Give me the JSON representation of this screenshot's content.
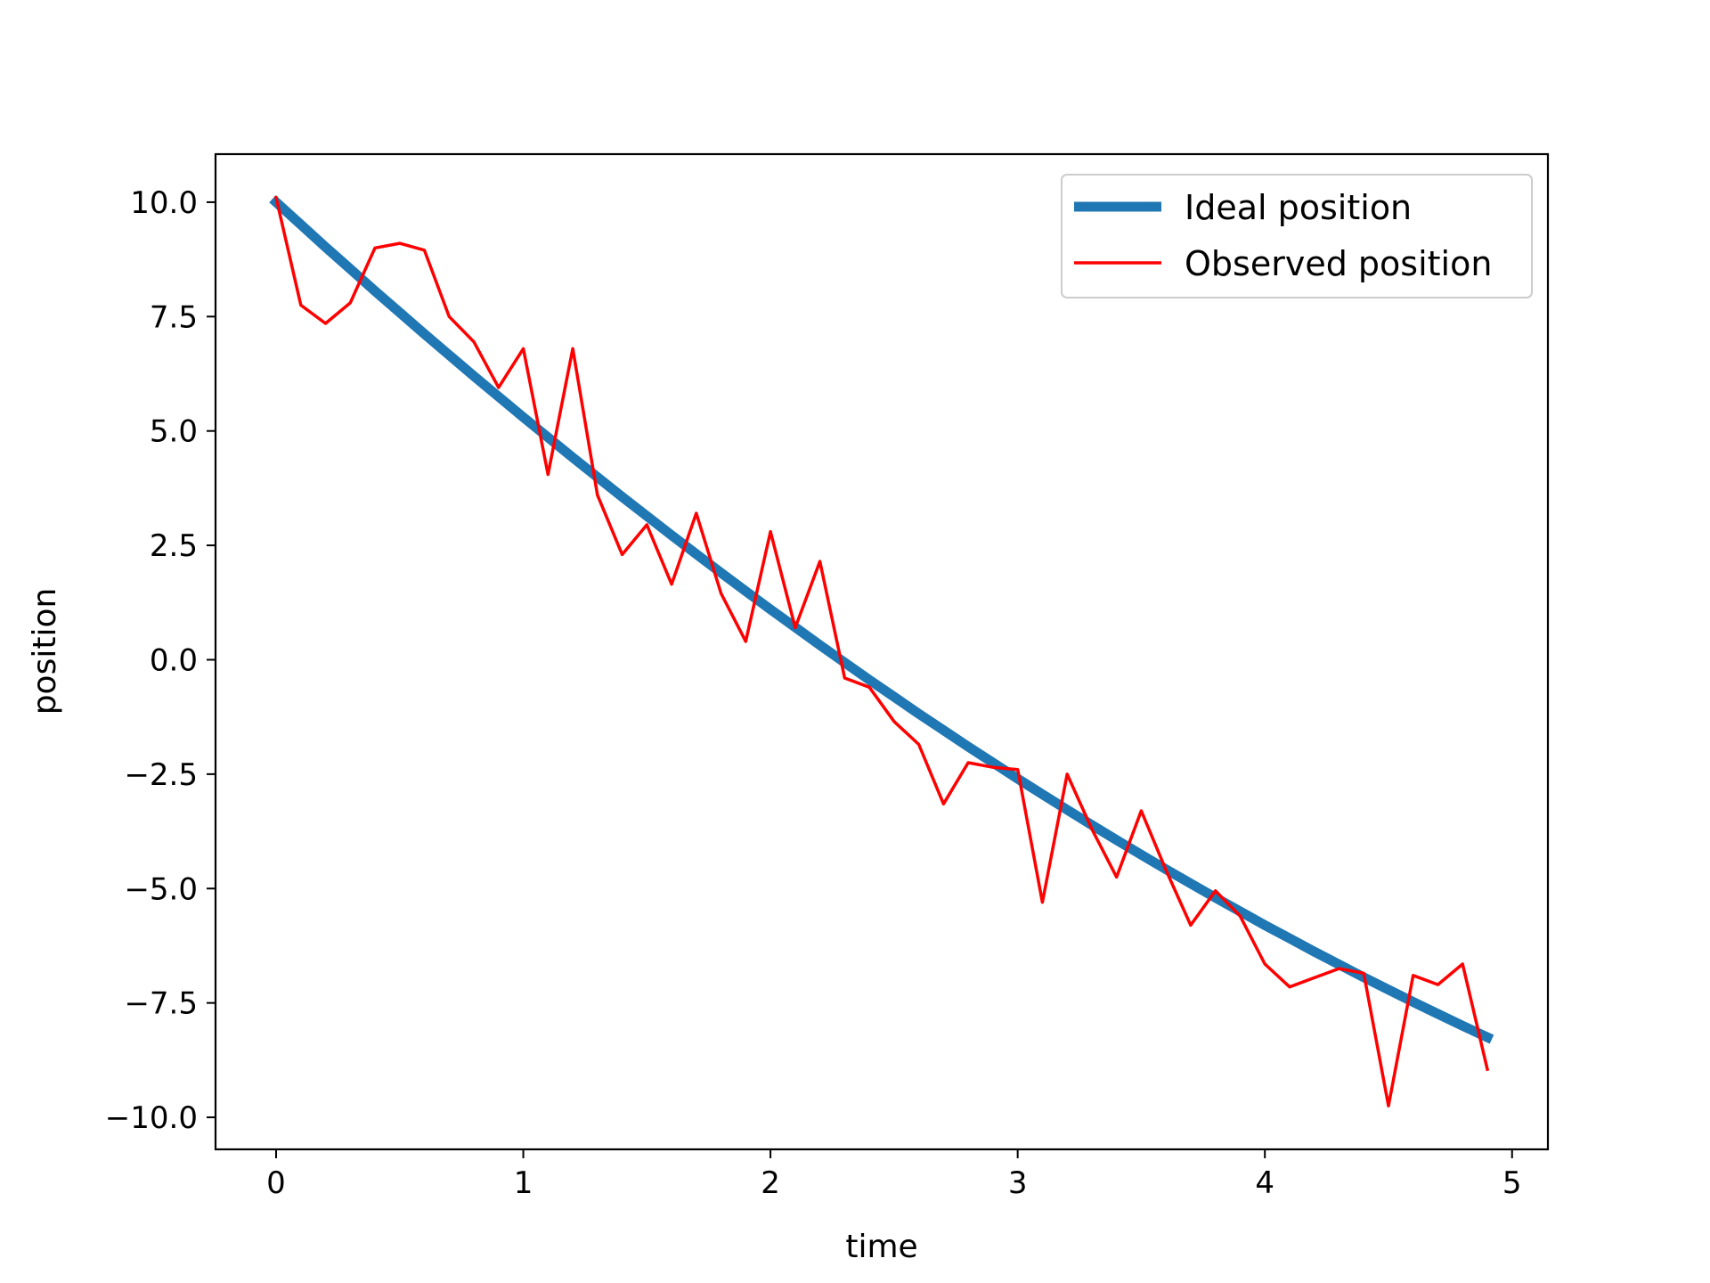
{
  "chart_data": {
    "type": "line",
    "title": "",
    "xlabel": "time",
    "ylabel": "position",
    "xlim": [
      -0.245,
      5.145
    ],
    "ylim": [
      -10.7,
      11.05
    ],
    "xticks": [
      0,
      1,
      2,
      3,
      4,
      5
    ],
    "yticks": [
      10.0,
      7.5,
      5.0,
      2.5,
      0.0,
      -2.5,
      -5.0,
      -7.5,
      -10.0
    ],
    "xtick_labels": [
      "0",
      "1",
      "2",
      "3",
      "4",
      "5"
    ],
    "ytick_labels": [
      "10.0",
      "7.5",
      "5.0",
      "2.5",
      "0.0",
      "−2.5",
      "−5.0",
      "−7.5",
      "−10.0"
    ],
    "grid": false,
    "legend_position": "top-right",
    "x": [
      0.0,
      0.1,
      0.2,
      0.3,
      0.4,
      0.5,
      0.6,
      0.7,
      0.8,
      0.9,
      1.0,
      1.1,
      1.2,
      1.3,
      1.4,
      1.5,
      1.6,
      1.7,
      1.8,
      1.9,
      2.0,
      2.1,
      2.2,
      2.3,
      2.4,
      2.5,
      2.6,
      2.7,
      2.8,
      2.9,
      3.0,
      3.1,
      3.2,
      3.3,
      3.4,
      3.5,
      3.6,
      3.7,
      3.8,
      3.9,
      4.0,
      4.1,
      4.2,
      4.3,
      4.4,
      4.5,
      4.6,
      4.7,
      4.8,
      4.9
    ],
    "series": [
      {
        "name": "Ideal position",
        "color": "#1f77b4",
        "values": [
          10.0,
          9.51,
          9.02,
          8.54,
          8.06,
          7.59,
          7.12,
          6.66,
          6.2,
          5.75,
          5.3,
          4.86,
          4.42,
          3.99,
          3.56,
          3.14,
          2.72,
          2.31,
          1.9,
          1.5,
          1.1,
          0.71,
          0.32,
          -0.06,
          -0.44,
          -0.81,
          -1.18,
          -1.54,
          -1.9,
          -2.25,
          -2.6,
          -2.94,
          -3.28,
          -3.61,
          -3.94,
          -4.26,
          -4.58,
          -4.89,
          -5.2,
          -5.5,
          -5.8,
          -6.09,
          -6.38,
          -6.66,
          -6.94,
          -7.21,
          -7.48,
          -7.74,
          -8.0,
          -8.25
        ]
      },
      {
        "name": "Observed position",
        "color": "#ff0000",
        "values": [
          10.1,
          7.75,
          7.35,
          7.8,
          9.0,
          9.1,
          8.95,
          7.5,
          6.95,
          5.95,
          6.8,
          4.05,
          6.8,
          3.6,
          2.3,
          2.95,
          1.65,
          3.2,
          1.45,
          0.4,
          2.8,
          0.7,
          2.15,
          -0.4,
          -0.6,
          -1.35,
          -1.85,
          -3.15,
          -2.25,
          -2.35,
          -2.4,
          -5.3,
          -2.5,
          -3.7,
          -4.75,
          -3.3,
          -4.6,
          -5.8,
          -5.05,
          -5.6,
          -6.65,
          -7.15,
          -6.95,
          -6.75,
          -6.85,
          -9.75,
          -6.9,
          -7.1,
          -6.65,
          -8.95
        ]
      }
    ]
  }
}
